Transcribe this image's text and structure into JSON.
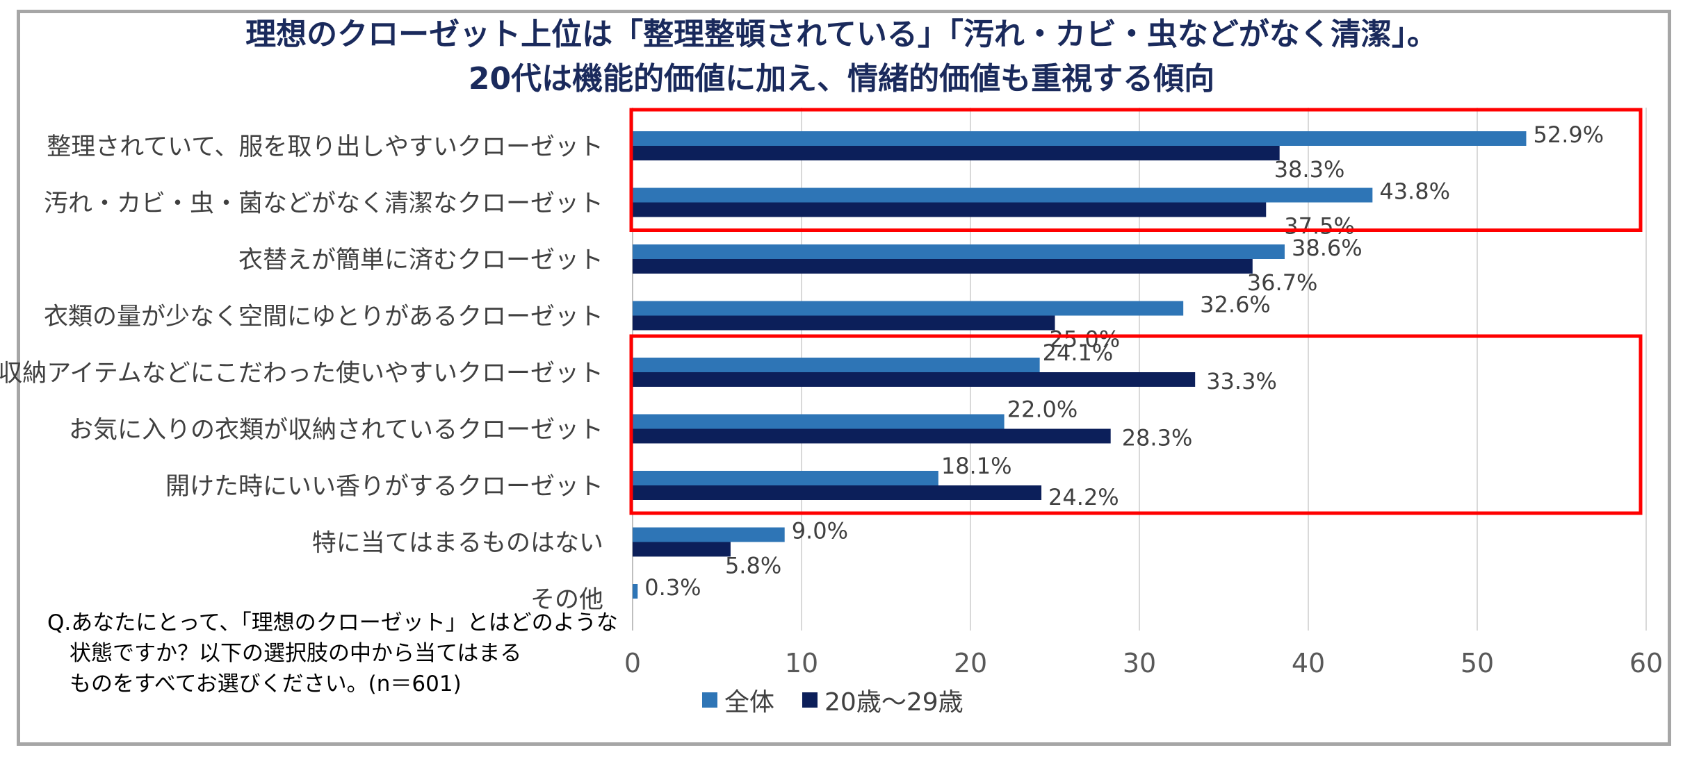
{
  "title": {
    "line1": "理想のクローゼット上位は「整理整頓されている」「汚れ・カビ・虫などがなく清潔」。",
    "line2": "20代は機能的価値に加え、情緒的価値も重視する傾向"
  },
  "question": {
    "line1": "Q.あなたにとって、「理想のクローゼット」とはどのような",
    "line2": "状態ですか？以下の選択肢の中から当てはまる",
    "line3": "ものをすべてお選びください。(n＝601)"
  },
  "colors": {
    "all": "#2e75b6",
    "age20s": "#0c1f5a",
    "highlight": "#ff0000",
    "grid": "#d9d9d9"
  },
  "chart_data": {
    "type": "bar",
    "orientation": "horizontal",
    "categories": [
      "整理されていて、服を取り出しやすいクローゼット",
      "汚れ・カビ・虫・菌などがなく清潔なクローゼット",
      "衣替えが簡単に済むクローゼット",
      "衣類の量が少なく空間にゆとりがあるクローゼット",
      "収納アイテムなどにこだわった使いやすいクローゼット",
      "お気に入りの衣類が収納されているクローゼット",
      "開けた時にいい香りがするクローゼット",
      "特に当てはまるものはない",
      "その他"
    ],
    "series": [
      {
        "name": "全体",
        "values": [
          52.9,
          43.8,
          38.6,
          32.6,
          24.1,
          22.0,
          18.1,
          9.0,
          0.3
        ],
        "labels": [
          "52.9%",
          "43.8%",
          "38.6%",
          "32.6%",
          "24.1%",
          "22.0%",
          "18.1%",
          "9.0%",
          "0.3%"
        ]
      },
      {
        "name": "20歳～29歳",
        "values": [
          38.3,
          37.5,
          36.7,
          25.0,
          33.3,
          28.3,
          24.2,
          5.8,
          null
        ],
        "labels": [
          "38.3%",
          "37.5%",
          "36.7%",
          "25.0%",
          "33.3%",
          "28.3%",
          "24.2%",
          "5.8%",
          ""
        ]
      }
    ],
    "xlim": [
      0,
      60
    ],
    "xticks": [
      "0",
      "10",
      "20",
      "30",
      "40",
      "50",
      "60"
    ],
    "grid": true,
    "legend": "bottom",
    "highlight_groups": [
      [
        0,
        1
      ],
      [
        4,
        5,
        6
      ]
    ]
  }
}
